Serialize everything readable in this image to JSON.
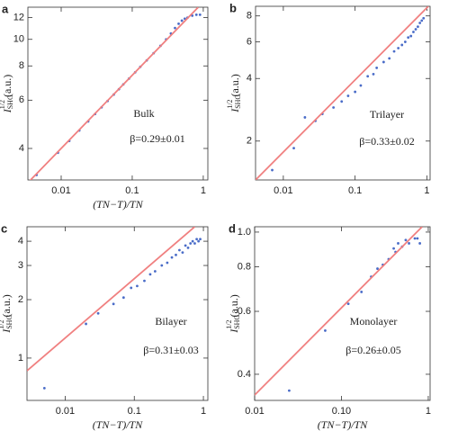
{
  "chart_data": [
    {
      "type": "scatter",
      "panel_label": "a",
      "xscale": "log",
      "yscale": "log",
      "xlabel": "(TN−T)/TN",
      "ylabel": {
        "symbol": "I",
        "sub": "SHG",
        "sup": "1/2",
        "unit": "(a.u.)"
      },
      "annotations": [
        "Bulk",
        "β=0.29±0.01"
      ],
      "xlim": [
        0.0034,
        1.16
      ],
      "ylim": [
        3.07,
        13.1
      ],
      "xticks": [
        0.01,
        0.1,
        1
      ],
      "yticks": [
        4,
        6,
        8,
        10,
        12
      ],
      "series": [
        {
          "color": "#4a6cc8",
          "x": [
            0.0045,
            0.009,
            0.013,
            0.018,
            0.024,
            0.03,
            0.037,
            0.045,
            0.055,
            0.065,
            0.075,
            0.09,
            0.11,
            0.13,
            0.16,
            0.2,
            0.25,
            0.3,
            0.35,
            0.4,
            0.45,
            0.5,
            0.55,
            0.6,
            0.7,
            0.8,
            0.9
          ],
          "y": [
            3.2,
            3.86,
            4.26,
            4.65,
            5.02,
            5.34,
            5.65,
            5.96,
            6.29,
            6.58,
            6.85,
            7.19,
            7.58,
            7.94,
            8.38,
            8.9,
            9.47,
            10.0,
            10.5,
            11.0,
            11.4,
            11.7,
            11.9,
            12.0,
            12.2,
            12.3,
            12.3
          ]
        },
        {
          "color": "#f08080",
          "mode": "line",
          "x": [
            0.0034,
            0.85
          ],
          "y": [
            3.0,
            13.1
          ]
        }
      ]
    },
    {
      "type": "scatter",
      "panel_label": "b",
      "xscale": "log",
      "yscale": "log",
      "ylabel": {
        "symbol": "I",
        "sub": "SHG",
        "sup": "1/2",
        "unit": "(a.u.)"
      },
      "annotations": [
        "Trilayer",
        "β=0.33±0.02"
      ],
      "xlim": [
        0.0041,
        1.11
      ],
      "ylim": [
        1.3,
        8.9
      ],
      "xticks": [
        0.01,
        0.1,
        1
      ],
      "yticks": [
        2,
        4,
        6,
        8
      ],
      "series": [
        {
          "color": "#4a6cc8",
          "x": [
            0.007,
            0.014,
            0.02,
            0.028,
            0.035,
            0.05,
            0.065,
            0.08,
            0.1,
            0.12,
            0.15,
            0.18,
            0.2,
            0.25,
            0.3,
            0.35,
            0.4,
            0.45,
            0.5,
            0.55,
            0.6,
            0.65,
            0.7,
            0.75,
            0.8,
            0.85,
            0.9
          ],
          "y": [
            1.45,
            1.85,
            2.6,
            2.5,
            2.7,
            2.9,
            3.1,
            3.3,
            3.45,
            3.7,
            4.1,
            4.2,
            4.5,
            4.8,
            5.0,
            5.4,
            5.6,
            5.8,
            6.0,
            6.3,
            6.4,
            6.7,
            6.9,
            7.1,
            7.4,
            7.6,
            7.8
          ]
        },
        {
          "color": "#f08080",
          "mode": "line",
          "x": [
            0.0041,
            1.05
          ],
          "y": [
            1.3,
            8.9
          ]
        }
      ]
    },
    {
      "type": "scatter",
      "panel_label": "c",
      "xscale": "log",
      "yscale": "log",
      "xlabel": "(TN−T)/TN",
      "ylabel": {
        "symbol": "I",
        "sub": "SHG",
        "sup": "1/2",
        "unit": "(a.u.)"
      },
      "annotations": [
        "Bilayer",
        "β=0.31±0.03"
      ],
      "xlim": [
        0.0028,
        1.16
      ],
      "ylim": [
        0.605,
        4.75
      ],
      "xticks": [
        0.01,
        0.1,
        1
      ],
      "yticks": [
        1,
        2,
        3,
        4
      ],
      "series": [
        {
          "color": "#4a6cc8",
          "x": [
            0.005,
            0.02,
            0.03,
            0.05,
            0.07,
            0.09,
            0.11,
            0.14,
            0.17,
            0.2,
            0.25,
            0.3,
            0.35,
            0.4,
            0.45,
            0.5,
            0.55,
            0.6,
            0.65,
            0.7,
            0.75,
            0.8,
            0.85,
            0.9
          ],
          "y": [
            0.7,
            1.5,
            1.7,
            1.9,
            2.05,
            2.3,
            2.35,
            2.5,
            2.7,
            2.8,
            3.0,
            3.1,
            3.3,
            3.4,
            3.6,
            3.5,
            3.8,
            3.7,
            3.9,
            4.0,
            3.9,
            4.1,
            4.0,
            4.1
          ]
        },
        {
          "color": "#f08080",
          "mode": "line",
          "x": [
            0.0028,
            0.75
          ],
          "y": [
            0.86,
            4.75
          ]
        }
      ]
    },
    {
      "type": "scatter",
      "panel_label": "d",
      "xscale": "log",
      "yscale": "log",
      "xlabel": "(TN−T)/TN",
      "ylabel": {
        "symbol": "I",
        "sub": "SHG",
        "sup": "1/2",
        "unit": "(a.u.)"
      },
      "annotations": [
        "Monolayer",
        "β=0.26±0.05"
      ],
      "xlim": [
        0.01,
        1.05
      ],
      "ylim": [
        0.338,
        1.035
      ],
      "xticks": [
        0.01,
        {
          "value": 0.1,
          "label": "0.10"
        },
        1
      ],
      "yticks": [
        0.4,
        0.6,
        0.8,
        {
          "value": 1.0,
          "label": "1.0"
        }
      ],
      "series": [
        {
          "color": "#4a6cc8",
          "x": [
            0.025,
            0.065,
            0.12,
            0.17,
            0.22,
            0.26,
            0.3,
            0.35,
            0.4,
            0.42,
            0.45,
            0.5,
            0.55,
            0.6,
            0.7,
            0.75,
            0.8
          ],
          "y": [
            0.36,
            0.53,
            0.63,
            0.68,
            0.75,
            0.79,
            0.81,
            0.84,
            0.9,
            0.88,
            0.93,
            0.91,
            0.95,
            0.93,
            0.96,
            0.96,
            0.93
          ]
        },
        {
          "color": "#f08080",
          "mode": "line",
          "x": [
            0.01,
            0.85
          ],
          "y": [
            0.35,
            1.035
          ]
        }
      ]
    }
  ]
}
